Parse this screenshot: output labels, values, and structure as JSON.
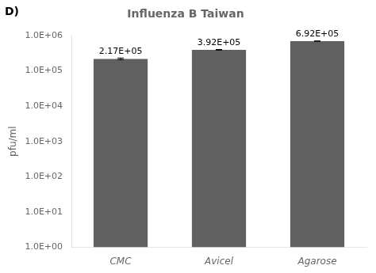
{
  "chart_data": {
    "type": "bar",
    "title": "Influenza B Taiwan",
    "categories": [
      "CMC",
      "Avicel",
      "Agarose"
    ],
    "values": [
      217000,
      392000,
      692000
    ],
    "errors": [
      12000,
      8000,
      5000
    ],
    "value_labels": [
      "2.17E+05",
      "3.92E+05",
      "6.92E+05"
    ],
    "data_labels": true,
    "color": "#606060",
    "ylabel": "pfu/ml",
    "log": "y",
    "ylim": [
      1,
      1000000
    ],
    "yticks": [
      {
        "value": 1,
        "label": "1.0E+00"
      },
      {
        "value": 10,
        "label": "1.0E+01"
      },
      {
        "value": 100,
        "label": "1.0E+02"
      },
      {
        "value": 1000,
        "label": "1.0E+03"
      },
      {
        "value": 10000,
        "label": "1.0E+04"
      },
      {
        "value": 100000,
        "label": "1.0E+05"
      },
      {
        "value": 1000000,
        "label": "1.0E+06"
      }
    ],
    "grid": false,
    "annotations": [
      "D)"
    ]
  }
}
